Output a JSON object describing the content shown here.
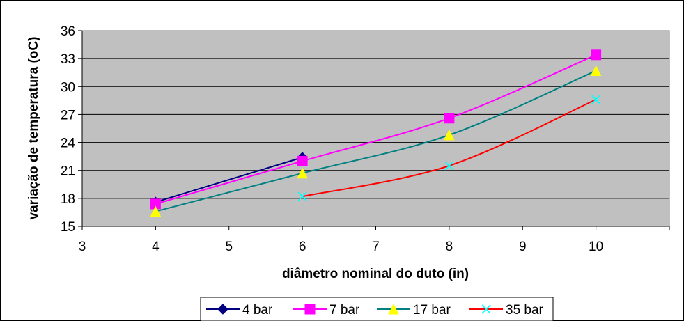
{
  "chart_data": {
    "type": "line",
    "xlabel": "diâmetro nominal do duto (in)",
    "ylabel": "variação de temperatura (oC)",
    "xlim": [
      3,
      11
    ],
    "ylim": [
      15,
      36
    ],
    "x_ticks": [
      "3",
      "4",
      "5",
      "6",
      "7",
      "8",
      "9",
      "10"
    ],
    "y_ticks": [
      "15",
      "18",
      "21",
      "24",
      "27",
      "30",
      "33",
      "36"
    ],
    "grid": "horizontal major gridlines",
    "plot_background": "#c0c0c0",
    "legend_position": "bottom",
    "series": [
      {
        "name": "4 bar",
        "color": "#000080",
        "marker": "diamond",
        "smooth": false,
        "x": [
          4,
          6
        ],
        "y": [
          17.6,
          22.4
        ]
      },
      {
        "name": "7 bar",
        "color": "#ff00ff",
        "marker": "square",
        "smooth": true,
        "x": [
          4,
          6,
          8,
          10
        ],
        "y": [
          17.4,
          22.0,
          26.6,
          33.4
        ]
      },
      {
        "name": "17 bar",
        "color": "#008080",
        "marker": "triangle",
        "marker_color": "#ffff00",
        "smooth": true,
        "x": [
          4,
          6,
          8,
          10
        ],
        "y": [
          16.6,
          20.7,
          24.8,
          31.7
        ]
      },
      {
        "name": "35 bar",
        "color": "#ff0000",
        "marker": "x",
        "marker_color": "#00ffff",
        "smooth": true,
        "x": [
          6,
          8,
          10
        ],
        "y": [
          18.2,
          21.5,
          28.6
        ]
      }
    ]
  }
}
